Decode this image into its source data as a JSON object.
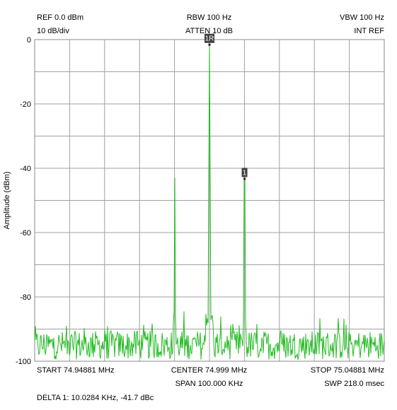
{
  "header": {
    "ref": "REF 0.0 dBm",
    "scale": "10 dB/div",
    "rbw": "RBW 100 Hz",
    "atten": "ATTEN 10 dB",
    "vbw": "VBW 100 Hz",
    "int_ref": "INT REF"
  },
  "footer": {
    "start": "START 74.94881 MHz",
    "center": "CENTER 74.999 MHz",
    "stop": "STOP 75.04881 MHz",
    "span": "SPAN 100.000 KHz",
    "sweep": "SWP 218.0 msec",
    "delta": "DELTA 1: 10.0284 KHz, -41.7 dBc"
  },
  "colors": {
    "trace": "#22bb22",
    "grid": "#a0a0a0",
    "marker_bg": "#404040",
    "marker_fg": "#ffffff"
  },
  "chart_data": {
    "type": "line",
    "ylabel": "Amplitude (dBm)",
    "ylim": [
      -100,
      0
    ],
    "yticks": [
      "0",
      "-20",
      "-40",
      "-60",
      "-80",
      "-100"
    ],
    "ytick_values": [
      0,
      -20,
      -40,
      -60,
      -80,
      -100
    ],
    "xlim_khz_offset": [
      -50,
      50
    ],
    "noise_floor_dbm": -95,
    "peaks": [
      {
        "offset_khz": -10.0,
        "level_dbm": -43
      },
      {
        "offset_khz": 0.0,
        "level_dbm": -1.7
      },
      {
        "offset_khz": 10.0284,
        "level_dbm": -43.4
      }
    ],
    "markers": [
      {
        "label": "1R",
        "offset_khz": 0.0,
        "level_dbm": -1.7
      },
      {
        "label": "1",
        "offset_khz": 10.0284,
        "level_dbm": -43.4
      }
    ]
  }
}
